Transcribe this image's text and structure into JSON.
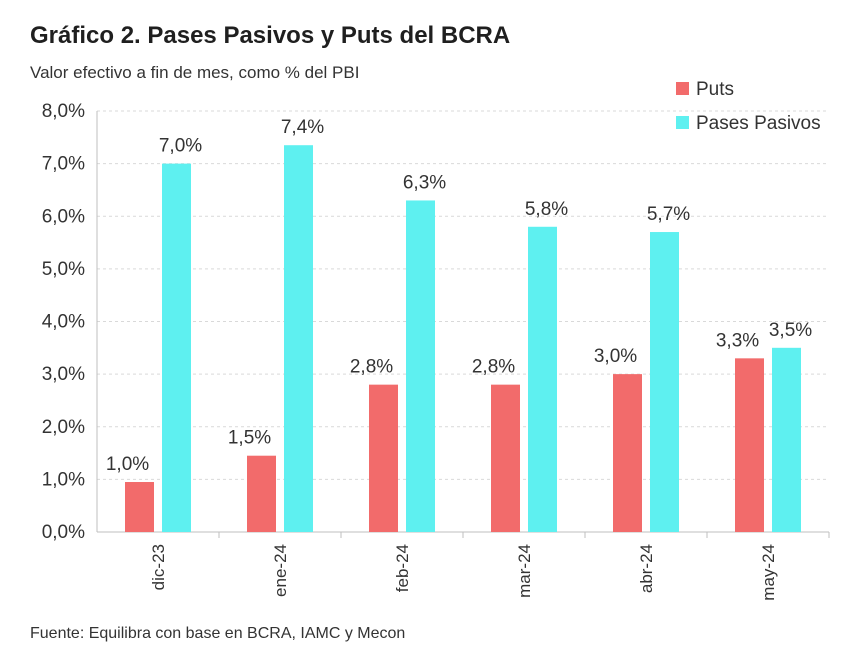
{
  "chart_data": {
    "type": "bar",
    "title": "Gráfico 2. Pases Pasivos y Puts del BCRA",
    "subtitle": "Valor efectivo a fin de mes, como % del PBI",
    "source": "Fuente: Equilibra con base en BCRA, IAMC y Mecon",
    "categories": [
      "dic-23",
      "ene-24",
      "feb-24",
      "mar-24",
      "abr-24",
      "may-24"
    ],
    "series": [
      {
        "name": "Puts",
        "color": "#f26b6b",
        "values": [
          0.95,
          1.45,
          2.8,
          2.8,
          3.0,
          3.3
        ],
        "labels": [
          "1,0%",
          "1,5%",
          "2,8%",
          "2,8%",
          "3,0%",
          "3,3%"
        ]
      },
      {
        "name": "Pases Pasivos",
        "color": "#5ef0f0",
        "values": [
          7.0,
          7.35,
          6.3,
          5.8,
          5.7,
          3.5
        ],
        "labels": [
          "7,0%",
          "7,4%",
          "6,3%",
          "5,8%",
          "5,7%",
          "3,5%"
        ]
      }
    ],
    "ylim": [
      0,
      8
    ],
    "yticks": [
      "0,0%",
      "1,0%",
      "2,0%",
      "3,0%",
      "4,0%",
      "5,0%",
      "6,0%",
      "7,0%",
      "8,0%"
    ],
    "grid": true,
    "legend_position": "top-right"
  }
}
